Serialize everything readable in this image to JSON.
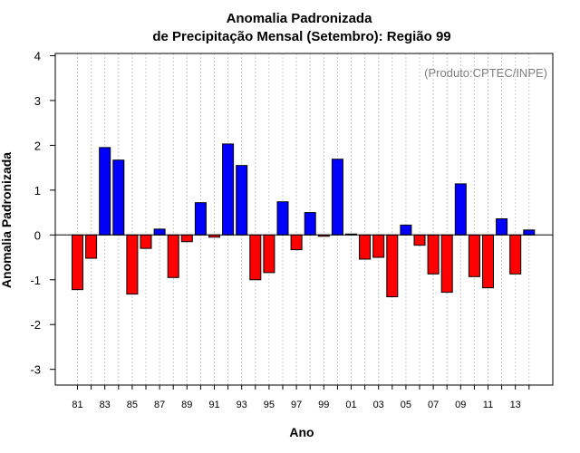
{
  "chart_data": {
    "type": "bar",
    "title_line1": "Anomalia Padronizada",
    "title_line2": "de Precipitação Mensal (Setembro): Região 99",
    "xlabel": "Ano",
    "ylabel": "Anomalia Padronizada",
    "credit": "(Produto:CPTEC/INPE)",
    "ylim": [
      -3.35,
      4.05
    ],
    "yticks": [
      -3,
      -2,
      -1,
      0,
      1,
      2,
      3,
      4
    ],
    "grid": "vertical-dotted",
    "positive_color": "#0000ff",
    "negative_color": "#ff0000",
    "categories": [
      "1981",
      "1982",
      "1983",
      "1984",
      "1985",
      "1986",
      "1987",
      "1988",
      "1989",
      "1990",
      "1991",
      "1992",
      "1993",
      "1994",
      "1995",
      "1996",
      "1997",
      "1998",
      "1999",
      "2000",
      "2001",
      "2002",
      "2003",
      "2004",
      "2005",
      "2006",
      "2007",
      "2008",
      "2009",
      "2010",
      "2011",
      "2012",
      "2013",
      "2014"
    ],
    "xtick_labels": [
      "81",
      "",
      "83",
      "",
      "85",
      "",
      "87",
      "",
      "89",
      "",
      "91",
      "",
      "93",
      "",
      "95",
      "",
      "97",
      "",
      "99",
      "",
      "01",
      "",
      "03",
      "",
      "05",
      "",
      "07",
      "",
      "09",
      "",
      "11",
      "",
      "13",
      ""
    ],
    "values": [
      -1.22,
      -0.52,
      1.95,
      1.67,
      -1.32,
      -0.3,
      0.13,
      -0.95,
      -0.15,
      0.72,
      -0.05,
      2.03,
      1.55,
      -1.0,
      -0.84,
      0.74,
      -0.33,
      0.5,
      -0.03,
      1.69,
      0.02,
      -0.54,
      -0.5,
      -1.38,
      0.22,
      -0.23,
      -0.87,
      -1.28,
      1.14,
      -0.93,
      -1.18,
      0.36,
      -0.87,
      0.11
    ]
  }
}
